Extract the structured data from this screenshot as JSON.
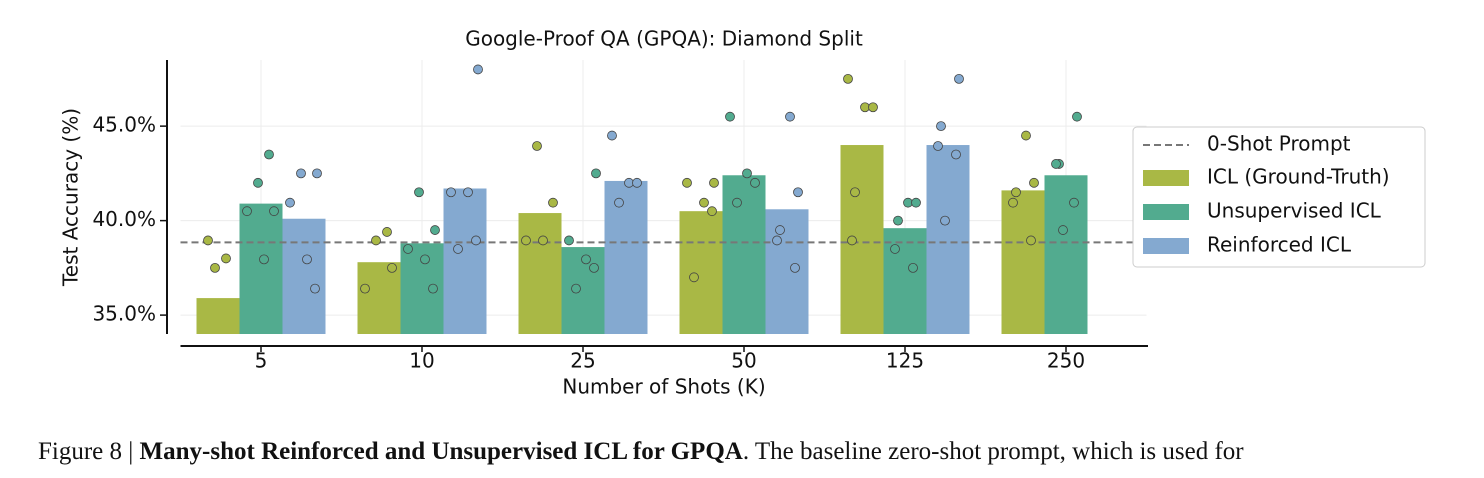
{
  "chart_data": {
    "type": "bar",
    "title": "Google-Proof QA (GPQA): Diamond Split",
    "xlabel": "Number of Shots (K)",
    "ylabel": "Test Accuracy (%)",
    "categories": [
      "5",
      "10",
      "25",
      "50",
      "125",
      "250"
    ],
    "ylim": [
      34,
      48.5
    ],
    "yticks": [
      {
        "value": 35,
        "label": "35.0%"
      },
      {
        "value": 40,
        "label": "40.0%"
      },
      {
        "value": 45,
        "label": "45.0%"
      }
    ],
    "grid": true,
    "legend": "right",
    "reference": {
      "name": "0-Shot Prompt",
      "value": 38.85,
      "color": "#777777"
    },
    "series": [
      {
        "name": "ICL (Ground-Truth)",
        "color": "#a9b845",
        "values": [
          35.9,
          37.8,
          40.4,
          40.5,
          44.0,
          41.6
        ],
        "points": [
          [
            38.95,
            38.0,
            37.5
          ],
          [
            39.4,
            38.95,
            37.5,
            36.4
          ],
          [
            43.95,
            40.95,
            38.95,
            38.95
          ],
          [
            42.0,
            42.0,
            40.95,
            40.5,
            37.0
          ],
          [
            47.5,
            46.0,
            46.0,
            41.5,
            38.95
          ],
          [
            44.5,
            42.0,
            41.5,
            40.95,
            38.95
          ]
        ]
      },
      {
        "name": "Unsupervised ICL",
        "color": "#52ab8f",
        "values": [
          40.9,
          38.8,
          38.6,
          42.4,
          39.6,
          42.4
        ],
        "points": [
          [
            43.5,
            42.0,
            40.5,
            40.5,
            37.95
          ],
          [
            41.5,
            39.5,
            38.5,
            37.95,
            36.4
          ],
          [
            42.5,
            38.95,
            37.95,
            37.5,
            36.4
          ],
          [
            45.5,
            42.5,
            42.0,
            40.95
          ],
          [
            40.95,
            40.95,
            40.0,
            38.5,
            37.5
          ],
          [
            45.5,
            43.0,
            43.0,
            40.95,
            39.5
          ]
        ]
      },
      {
        "name": "Reinforced ICL",
        "color": "#84a9d0",
        "values": [
          40.1,
          41.7,
          42.1,
          40.6,
          44.0,
          null
        ],
        "points": [
          [
            42.5,
            42.5,
            40.95,
            37.95,
            36.4
          ],
          [
            48.0,
            41.5,
            41.5,
            38.95,
            38.5
          ],
          [
            44.5,
            42.0,
            42.0,
            40.95
          ],
          [
            45.5,
            41.5,
            39.5,
            38.95,
            37.5
          ],
          [
            47.5,
            45.0,
            43.95,
            43.5,
            40.0
          ],
          []
        ]
      }
    ]
  },
  "caption": {
    "label": "Figure 8 |",
    "bold": "Many-shot Reinforced and Unsupervised ICL for GPQA",
    "text": ". The baseline zero-shot prompt, which is used for"
  }
}
